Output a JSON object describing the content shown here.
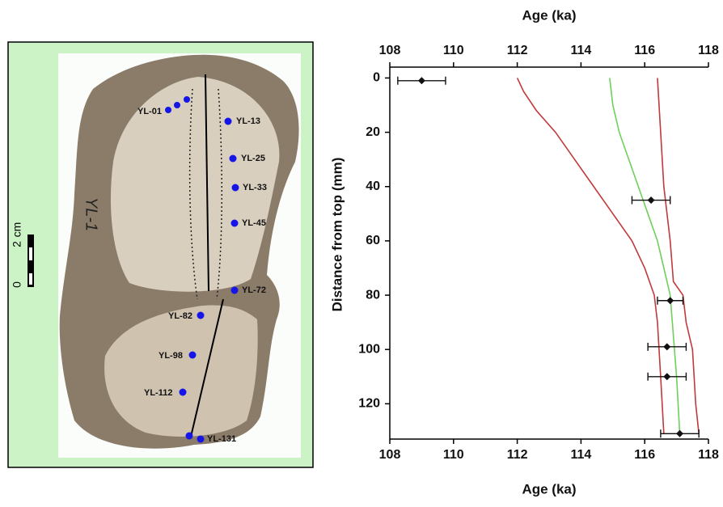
{
  "specimen": "YL-1",
  "scale_bar": {
    "start": 0,
    "end": 2,
    "unit": "cm"
  },
  "sample_labels": [
    "YL-01",
    "YL-13",
    "YL-25",
    "YL-33",
    "YL-45",
    "YL-72",
    "YL-82",
    "YL-98",
    "YL-112",
    "YL-131"
  ],
  "chart_data": {
    "type": "scatter",
    "x_label_top": "Age (ka)",
    "x_label": "Age (ka)",
    "y_label": "Distance from top (mm)",
    "xlim": [
      108,
      118
    ],
    "ylim": [
      -4,
      133
    ],
    "y_inverted": true,
    "xticks": [
      108,
      110,
      112,
      114,
      116,
      118
    ],
    "yticks": [
      0,
      20,
      40,
      60,
      80,
      100,
      120
    ],
    "points": {
      "color": "#111111",
      "x": [
        109.0,
        116.2,
        116.8,
        116.7,
        116.7,
        117.1
      ],
      "y": [
        1,
        45,
        82,
        99,
        110,
        131
      ],
      "xerr": [
        0.75,
        0.6,
        0.4,
        0.6,
        0.6,
        0.6
      ]
    },
    "lines": [
      {
        "color": "#6fcf5a",
        "x": [
          114.9,
          115.0,
          115.2,
          115.5,
          115.8,
          116.1,
          116.4,
          116.6,
          116.8,
          116.9,
          117.0,
          117.1
        ],
        "y": [
          0,
          10,
          20,
          30,
          40,
          50,
          60,
          70,
          80,
          95,
          110,
          131
        ]
      },
      {
        "color": "#c0393b",
        "x": [
          112.0,
          112.2,
          112.6,
          113.2,
          113.8,
          114.4,
          115.0,
          115.6,
          116.0,
          116.3,
          116.4,
          116.5,
          116.6
        ],
        "y": [
          0,
          5,
          12,
          20,
          30,
          40,
          50,
          60,
          70,
          80,
          90,
          110,
          131
        ]
      },
      {
        "color": "#c0393b",
        "x": [
          116.4,
          116.5,
          116.6,
          116.8,
          116.9,
          117.2,
          117.3,
          117.5,
          117.6,
          117.7
        ],
        "y": [
          0,
          20,
          40,
          60,
          75,
          80,
          90,
          100,
          120,
          131
        ]
      }
    ]
  }
}
